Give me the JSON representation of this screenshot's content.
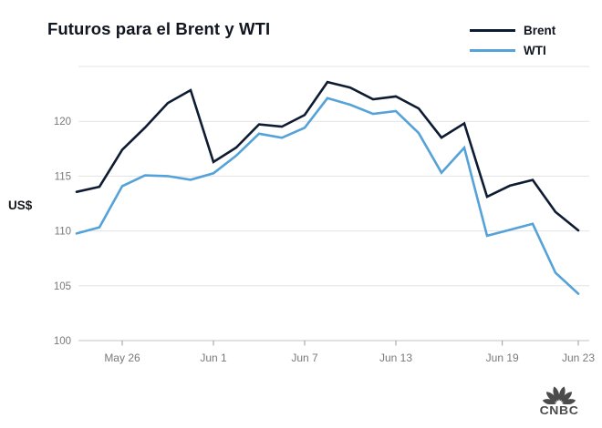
{
  "title": "Futuros para el Brent y WTI",
  "y_axis_label": "US$",
  "legend": [
    {
      "label": "Brent",
      "color": "#0e1c33"
    },
    {
      "label": "WTI",
      "color": "#55a2d9"
    }
  ],
  "logo": {
    "text": "CNBC"
  },
  "colors": {
    "brent": "#0e1c33",
    "wti": "#55a2d9",
    "gridline": "#e3e3e3",
    "axis_line": "#c3c3c3",
    "tick": "#9b9b9b",
    "tick_label": "#77797b",
    "title_text": "#10161f",
    "logo_gray": "#4b4b4b"
  },
  "chart_data": {
    "type": "line",
    "title": "Futuros para el Brent y WTI",
    "xlabel": "",
    "ylabel": "US$",
    "ylim": [
      100,
      125
    ],
    "grid": "horizontal",
    "legend_position": "top-right",
    "gridlines": [
      100,
      105,
      110,
      115,
      120,
      125
    ],
    "yticks_labeled": [
      100,
      105,
      110,
      115,
      120
    ],
    "x": [
      "May 24",
      "May 25",
      "May 26",
      "May 27",
      "May 30",
      "May 31",
      "Jun 1",
      "Jun 2",
      "Jun 3",
      "Jun 6",
      "Jun 7",
      "Jun 8",
      "Jun 9",
      "Jun 10",
      "Jun 13",
      "Jun 14",
      "Jun 15",
      "Jun 16",
      "Jun 17",
      "Jun 20",
      "Jun 21",
      "Jun 22",
      "Jun 23"
    ],
    "xticks": [
      {
        "label": "May 26",
        "i": 2
      },
      {
        "label": "Jun 1",
        "i": 6
      },
      {
        "label": "Jun 7",
        "i": 10
      },
      {
        "label": "Jun 13",
        "i": 14
      },
      {
        "label": "Jun 19",
        "i": 18.667
      },
      {
        "label": "Jun 23",
        "i": 22
      }
    ],
    "series": [
      {
        "name": "Brent",
        "color": "#0e1c33",
        "values": [
          113.56,
          114.03,
          117.4,
          119.43,
          121.67,
          122.84,
          116.29,
          117.61,
          119.72,
          119.51,
          120.57,
          123.58,
          123.07,
          122.01,
          122.27,
          121.17,
          118.51,
          119.81,
          113.12,
          114.13,
          114.65,
          111.74,
          110.05
        ]
      },
      {
        "name": "WTI",
        "color": "#55a2d9",
        "values": [
          109.77,
          110.33,
          114.09,
          115.07,
          115.0,
          114.67,
          115.26,
          116.87,
          118.87,
          118.5,
          119.41,
          122.11,
          121.51,
          120.67,
          120.93,
          118.93,
          115.31,
          117.59,
          109.56,
          110.1,
          110.65,
          106.19,
          104.27
        ]
      }
    ]
  }
}
